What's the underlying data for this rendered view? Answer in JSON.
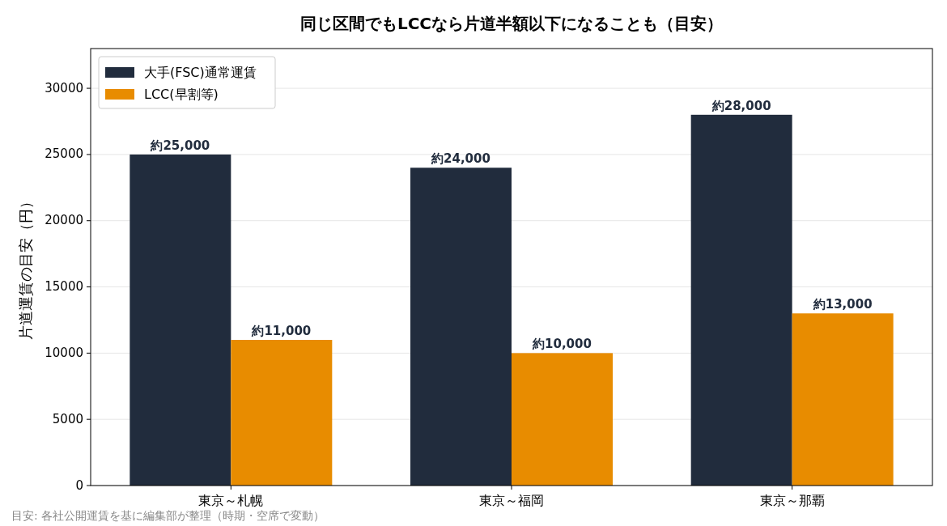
{
  "chart_data": {
    "type": "bar",
    "title": "同じ区間でもLCCなら片道半額以下になることも（目安）",
    "ylabel": "片道運賃の目安（円）",
    "categories": [
      "東京～札幌",
      "東京～福岡",
      "東京～那覇"
    ],
    "series": [
      {
        "name": "大手(FSC)通常運賃",
        "color": "#212c3d",
        "values": [
          25000,
          24000,
          28000
        ],
        "value_labels": [
          "約25,000",
          "約24,000",
          "約28,000"
        ]
      },
      {
        "name": "LCC(早割等)",
        "color": "#e88c00",
        "values": [
          11000,
          10000,
          13000
        ],
        "value_labels": [
          "約11,000",
          "約10,000",
          "約13,000"
        ]
      }
    ],
    "ylim": [
      0,
      33000
    ],
    "yticks": [
      0,
      5000,
      10000,
      15000,
      20000,
      25000,
      30000
    ],
    "grid": "y",
    "legend": "top left",
    "annotations": [
      "目安: 各社公開運賃を基に編集部が整理（時期・空席で変動）"
    ]
  }
}
